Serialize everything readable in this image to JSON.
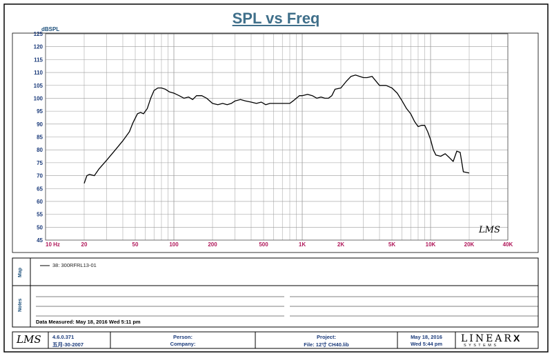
{
  "chart_data": {
    "type": "line",
    "title": "SPL vs Freq",
    "ylabel": "dBSPL",
    "xlabel": "",
    "xscale": "log",
    "xlim": [
      10,
      40000
    ],
    "ylim": [
      45,
      125
    ],
    "yticks": [
      45,
      50,
      55,
      60,
      65,
      70,
      75,
      80,
      85,
      90,
      95,
      100,
      105,
      110,
      115,
      120,
      125
    ],
    "xticks": [
      {
        "v": 10,
        "label": "10  Hz"
      },
      {
        "v": 20,
        "label": "20"
      },
      {
        "v": 50,
        "label": "50"
      },
      {
        "v": 100,
        "label": "100"
      },
      {
        "v": 200,
        "label": "200"
      },
      {
        "v": 500,
        "label": "500"
      },
      {
        "v": 1000,
        "label": "1K"
      },
      {
        "v": 2000,
        "label": "2K"
      },
      {
        "v": 5000,
        "label": "5K"
      },
      {
        "v": 10000,
        "label": "10K"
      },
      {
        "v": 20000,
        "label": "20K"
      },
      {
        "v": 40000,
        "label": "40K"
      }
    ],
    "grid": true,
    "series": [
      {
        "name": "38: 300RFRL13-01",
        "x": [
          20,
          21,
          22,
          24,
          26,
          30,
          35,
          40,
          45,
          48,
          52,
          55,
          58,
          62,
          66,
          70,
          75,
          80,
          86,
          92,
          100,
          110,
          120,
          130,
          140,
          150,
          165,
          180,
          200,
          220,
          240,
          260,
          280,
          300,
          330,
          360,
          400,
          440,
          480,
          520,
          560,
          600,
          650,
          700,
          750,
          800,
          850,
          900,
          950,
          1000,
          1100,
          1200,
          1300,
          1400,
          1500,
          1600,
          1700,
          1800,
          2000,
          2200,
          2400,
          2600,
          2800,
          3000,
          3200,
          3500,
          4000,
          4500,
          5000,
          5500,
          6000,
          6500,
          7000,
          7500,
          8000,
          8500,
          9000,
          9500,
          10000,
          10500,
          11000,
          12000,
          13000,
          14000,
          15000,
          16000,
          17000,
          18000,
          20000
        ],
        "y": [
          67,
          70,
          70.5,
          70,
          72.5,
          76,
          80,
          83.5,
          87,
          90.5,
          94,
          94.5,
          94,
          96,
          100,
          103,
          104,
          104,
          103.5,
          102.5,
          102,
          101,
          100,
          100.5,
          99.5,
          101,
          101,
          100,
          98,
          97.5,
          98,
          97.5,
          98,
          99,
          99.5,
          99,
          98.5,
          98,
          98.5,
          97.5,
          98,
          98,
          98,
          98,
          98,
          98,
          99,
          100,
          101,
          101,
          101.5,
          101,
          100,
          100.5,
          100,
          100,
          101,
          103.5,
          104,
          106.5,
          108.5,
          109,
          108.5,
          108,
          108,
          108.5,
          105,
          105,
          104,
          102,
          99,
          96,
          94,
          91,
          89,
          89.5,
          89.5,
          87,
          84,
          80,
          78,
          77.5,
          78.5,
          77,
          75.5,
          79.5,
          79,
          71.5,
          71
        ]
      }
    ]
  },
  "legend": {
    "label": "Map",
    "entries": [
      "38: 300RFRL13-01"
    ]
  },
  "notes": {
    "label": "Notes",
    "measured": "Data Measured: May 18, 2016  Wed  5:11 pm"
  },
  "watermark": "LMS",
  "footer": {
    "logo": "LMS",
    "version": "4.6.0.371",
    "date": "五月-30-2007",
    "person": "Person:",
    "company": "Company:",
    "project": "Project:",
    "file": "File: 12寸 CH40.lib",
    "now_date": "May 18, 2016",
    "now_time": "Wed  5:44 pm",
    "brand": "LINEAR",
    "brand_x": "X",
    "brand_sub": "S Y S T E M S"
  },
  "colors": {
    "grid": "#9a9a9a",
    "tick": "#b0185a",
    "curve": "#000000",
    "frame": "#000000",
    "text": "#1a3a7a"
  }
}
